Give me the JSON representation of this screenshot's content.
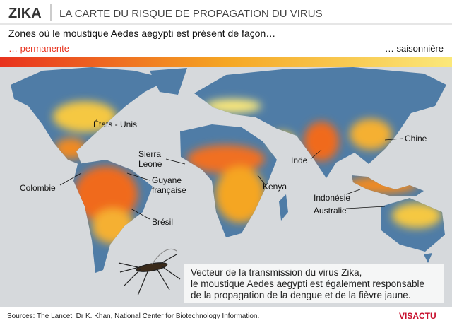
{
  "header": {
    "tag": "ZIKA",
    "title": "LA CARTE DU RISQUE DE PROPAGATION DU VIRUS"
  },
  "legend": {
    "title": "Zones où le moustique Aedes aegypti est présent de façon…",
    "left": "… permanente",
    "right": "… saisonnière"
  },
  "map_labels": {
    "usa": [
      "États - Unis"
    ],
    "sierra_leone": [
      "Sierra",
      "Leone"
    ],
    "colombia": [
      "Colombie"
    ],
    "guyana": [
      "Guyane",
      "française"
    ],
    "brazil": [
      "Brésil"
    ],
    "kenya": [
      "Kenya"
    ],
    "india": [
      "Inde"
    ],
    "china": [
      "Chine"
    ],
    "indonesia": [
      "Indonésie"
    ],
    "australia": [
      "Australie"
    ]
  },
  "note": [
    "Vecteur de la transmission du virus Zika,",
    "le moustique Aedes aegypti est également responsable",
    "de la propagation de la dengue et de la fièvre jaune."
  ],
  "footer": {
    "sources": "Sources: The Lancet, Dr K. Khan, National Center for Biotechnology Information.",
    "brand": "VISACTU"
  }
}
